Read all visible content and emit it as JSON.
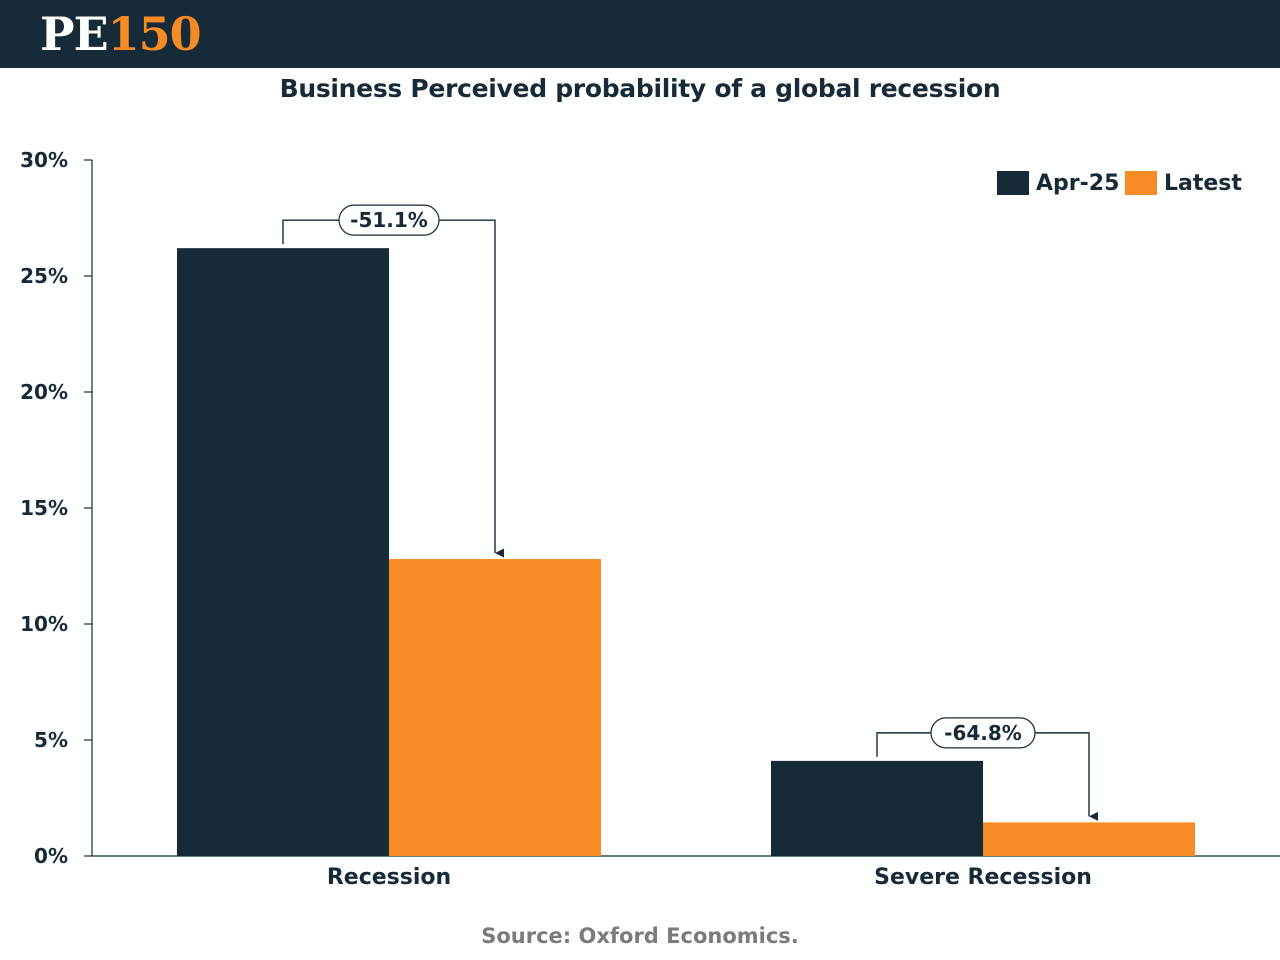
{
  "brand": {
    "logo_letters": "PE",
    "logo_number": "150"
  },
  "colors": {
    "header": "#162a38",
    "dark_series": "#162a38",
    "orange_series": "#f78b25",
    "source_text": "#7b7b7b"
  },
  "chart_data": {
    "type": "bar",
    "title": "Business Perceived probability of a global recession",
    "categories": [
      "Recession",
      "Severe Recession"
    ],
    "series": [
      {
        "name": "Apr-25",
        "values": [
          26.2,
          4.1
        ],
        "color": "#162a38"
      },
      {
        "name": "Latest",
        "values": [
          12.8,
          1.45
        ],
        "color": "#f78b25"
      }
    ],
    "ylim": [
      0,
      30
    ],
    "yticks": [
      0,
      5,
      10,
      15,
      20,
      25,
      30
    ],
    "ytick_labels": [
      "0%",
      "5%",
      "10%",
      "15%",
      "20%",
      "25%",
      "30%"
    ],
    "xlabel": "",
    "ylabel": "",
    "grid": false,
    "legend_position": "top-right",
    "annotations": [
      "-51.1%",
      "-64.8%"
    ]
  },
  "source": "Source: Oxford Economics."
}
